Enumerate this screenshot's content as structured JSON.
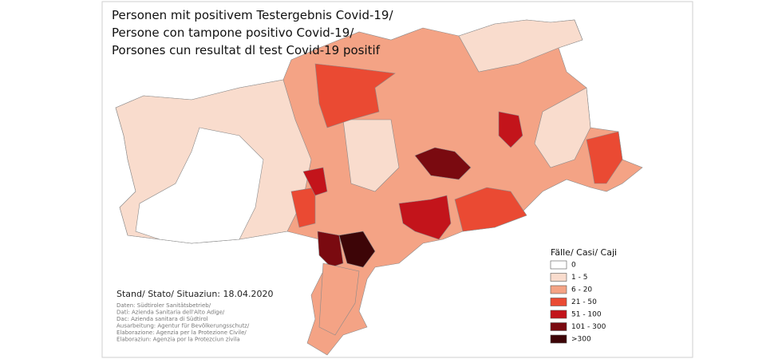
{
  "header": {
    "title_lines": [
      "Personen mit  positivem Testergebnis Covid-19/",
      "Persone con tampone  positivo Covid-19/",
      "Porsones cun resultat dl test Covid-19 positif"
    ]
  },
  "legend": {
    "title": "Fälle/ Casi/ Caji",
    "classes": [
      {
        "label": "0",
        "color": "#ffffff"
      },
      {
        "label": "1 - 5",
        "color": "#f9dccd"
      },
      {
        "label": "6 - 20",
        "color": "#f4a385"
      },
      {
        "label": "21 - 50",
        "color": "#ea4a33"
      },
      {
        "label": "51 - 100",
        "color": "#c3141b"
      },
      {
        "label": "101 - 300",
        "color": "#7a0a10"
      },
      {
        "label": ">300",
        "color": "#3d0507"
      }
    ]
  },
  "footer": {
    "stand": "Stand/ Stato/ Situaziun: 18.04.2020",
    "credits": [
      "Daten: Südtiroler Sanitätsbetrieb/",
      "Dati: Azienda Sanitaria dell'Alto Adige/",
      "Dac: Azienda sanitara di Südtirol",
      "Ausarbeitung: Agentur für Bevölkerungsschutz/",
      "Elaborazione: Agenzia per la Protezione Civile/",
      "Elaboraziun: Agenzia por la Protezciun zivila"
    ]
  }
}
